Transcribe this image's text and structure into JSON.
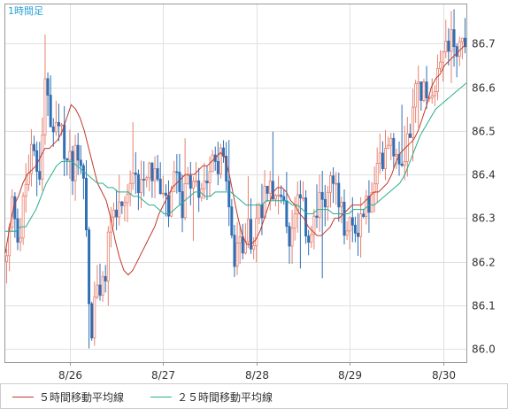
{
  "timeframe_label": "1時間足",
  "chart_data": {
    "type": "candlestick",
    "title": "",
    "xlabel": "",
    "ylabel": "",
    "ylim": [
      85.97,
      86.79
    ],
    "y_ticks": [
      "86.7",
      "86.6",
      "86.5",
      "86.4",
      "86.3",
      "86.2",
      "86.1",
      "86.0"
    ],
    "x_ticks": [
      {
        "label": "8/26",
        "index": 23
      },
      {
        "label": "8/27",
        "index": 57
      },
      {
        "label": "8/28",
        "index": 91
      },
      {
        "label": "8/29",
        "index": 125
      },
      {
        "label": "8/30",
        "index": 159
      }
    ],
    "grid": true,
    "legend_position": "bottom-left",
    "colors": {
      "up": "#e88070",
      "down": "#2f6fb5",
      "ma5": "#c0392b",
      "ma25": "#27ae8f",
      "grid": "#e0e0e0",
      "frame": "#999999",
      "background": "#ffffff"
    },
    "series": [
      {
        "name": "５時間移動平均線",
        "color": "#c0392b",
        "values": [
          86.22,
          86.28,
          86.33,
          86.35,
          86.38,
          86.4,
          86.41,
          86.42,
          86.44,
          86.46,
          86.46,
          86.47,
          86.48,
          86.5,
          86.53,
          86.56,
          86.55,
          86.53,
          86.5,
          86.46,
          86.42,
          86.38,
          86.36,
          86.34,
          86.3,
          86.25,
          86.21,
          86.18,
          86.17,
          86.18,
          86.2,
          86.22,
          86.24,
          86.26,
          86.28,
          86.31,
          86.33,
          86.35,
          86.37,
          86.38,
          86.39,
          86.4,
          86.4,
          86.4,
          86.41,
          86.42,
          86.42,
          86.43,
          86.44,
          86.45,
          86.44,
          86.4,
          86.35,
          86.3,
          86.26,
          86.24,
          86.24,
          86.25,
          86.27,
          86.3,
          86.33,
          86.36,
          86.37,
          86.37,
          86.36,
          86.34,
          86.33,
          86.31,
          86.3,
          86.28,
          86.27,
          86.26,
          86.26,
          86.27,
          86.28,
          86.3,
          86.3,
          86.31,
          86.32,
          86.33,
          86.33,
          86.33,
          86.34,
          86.35,
          86.36,
          86.36,
          86.37,
          86.38,
          86.4,
          86.43,
          86.45,
          86.46,
          86.47,
          86.48,
          86.5,
          86.53,
          86.56,
          86.6,
          86.62,
          86.63,
          86.65,
          86.66,
          86.67,
          86.68,
          86.69,
          86.7
        ]
      },
      {
        "name": "２５時間移動平均線",
        "color": "#27ae8f",
        "values": [
          86.27,
          86.27,
          86.27,
          86.28,
          86.28,
          86.3,
          86.32,
          86.35,
          86.38,
          86.4,
          86.42,
          86.43,
          86.43,
          86.43,
          86.42,
          86.41,
          86.4,
          86.39,
          86.38,
          86.38,
          86.37,
          86.37,
          86.36,
          86.36,
          86.36,
          86.35,
          86.35,
          86.34,
          86.33,
          86.33,
          86.32,
          86.31,
          86.31,
          86.32,
          86.33,
          86.34,
          86.35,
          86.36,
          86.36,
          86.35,
          86.35,
          86.36,
          86.36,
          86.36,
          86.36,
          86.35,
          86.34,
          86.33,
          86.33,
          86.33,
          86.33,
          86.34,
          86.34,
          86.34,
          86.34,
          86.34,
          86.33,
          86.33,
          86.32,
          86.31,
          86.31,
          86.32,
          86.32,
          86.32,
          86.31,
          86.31,
          86.31,
          86.31,
          86.32,
          86.32,
          86.32,
          86.33,
          86.33,
          86.34,
          86.35,
          86.36,
          86.37,
          86.38,
          86.4,
          86.43,
          86.46,
          86.49,
          86.51,
          86.53,
          86.55,
          86.56,
          86.57,
          86.58,
          86.59,
          86.6,
          86.61
        ]
      },
      {
        "name": "ohlc",
        "open": [],
        "high": [],
        "low": [],
        "close": []
      }
    ],
    "candles_seed": {
      "count": 168,
      "path": [
        86.2,
        86.35,
        86.25,
        86.38,
        86.45,
        86.4,
        86.62,
        86.48,
        86.5,
        86.45,
        86.42,
        86.47,
        86.4,
        86.01,
        86.15,
        86.12,
        86.3,
        86.32,
        86.28,
        86.35,
        86.38,
        86.41,
        86.43,
        86.4,
        86.34,
        86.3,
        86.38,
        86.33,
        86.35,
        86.4,
        86.38,
        86.42,
        86.45,
        86.44,
        86.4,
        86.2,
        86.22,
        86.28,
        86.25,
        86.3,
        86.38,
        86.4,
        86.35,
        86.3,
        86.25,
        86.32,
        86.3,
        86.26,
        86.3,
        86.35,
        86.38,
        86.36,
        86.29,
        86.26,
        86.28,
        86.31,
        86.33,
        86.36,
        86.44,
        86.5,
        86.47,
        86.45,
        86.48,
        86.56,
        86.61,
        86.58,
        86.62,
        86.66,
        86.7,
        86.72,
        86.69,
        86.7
      ]
    }
  },
  "legend": [
    {
      "label": "５時間移動平均線",
      "color": "#c0392b"
    },
    {
      "label": "２５時間移動平均線",
      "color": "#27ae8f"
    }
  ]
}
